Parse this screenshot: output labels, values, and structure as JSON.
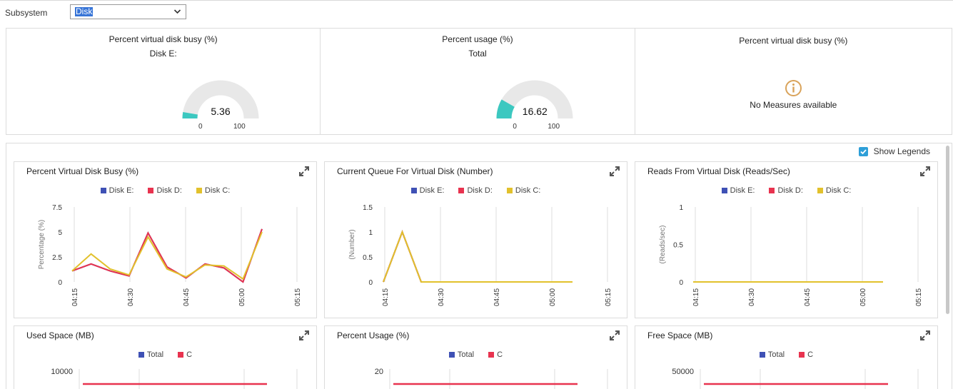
{
  "header": {
    "subsystem_label": "Subsystem",
    "subsystem_value": "Disk"
  },
  "gauges": [
    {
      "title": "Percent virtual disk busy (%)",
      "subtitle": "Disk E:",
      "value": 5.36,
      "value_label": "5.36",
      "min": "0",
      "max": "100"
    },
    {
      "title": "Percent usage (%)",
      "subtitle": "Total",
      "value": 16.62,
      "value_label": "16.62",
      "min": "0",
      "max": "100"
    },
    {
      "title": "Percent virtual disk busy (%)",
      "no_data_text": "No Measures available"
    }
  ],
  "colors": {
    "gauge_fill": "#3cc8c0",
    "gauge_track": "#e8e8e8",
    "series_blue": "#3f51b5",
    "series_red": "#e8334f",
    "series_yellow": "#e2c12c",
    "info_icon": "#d9a35a",
    "checkbox": "#2e9fd8"
  },
  "show_legends": {
    "label": "Show Legends",
    "checked": true
  },
  "chart_data": [
    {
      "type": "line",
      "title": "Percent Virtual Disk Busy (%)",
      "ylabel": "Percentage (%)",
      "ylim": [
        0,
        7.5
      ],
      "yticks": [
        "0",
        "2.5",
        "5",
        "7.5"
      ],
      "xticks": [
        "04:15",
        "04:30",
        "04:45",
        "05:00",
        "05:15"
      ],
      "legend": [
        "Disk E:",
        "Disk D:",
        "Disk C:"
      ],
      "x": [
        "04:14",
        "04:18",
        "04:23",
        "04:29",
        "04:34",
        "04:39",
        "04:44",
        "04:49",
        "04:54",
        "04:59",
        "05:04"
      ],
      "series": [
        {
          "name": "Disk E:",
          "color": "#3f51b5",
          "values": [
            1.1,
            1.8,
            1.1,
            0.6,
            4.9,
            1.5,
            0.4,
            1.8,
            1.4,
            0.0,
            5.3
          ]
        },
        {
          "name": "Disk D:",
          "color": "#e8334f",
          "values": [
            1.1,
            1.8,
            1.1,
            0.6,
            4.9,
            1.5,
            0.4,
            1.8,
            1.4,
            0.0,
            5.3
          ]
        },
        {
          "name": "Disk C:",
          "color": "#e2c12c",
          "values": [
            1.1,
            2.8,
            1.3,
            0.7,
            4.5,
            1.3,
            0.5,
            1.7,
            1.6,
            0.3,
            5.0
          ]
        }
      ]
    },
    {
      "type": "line",
      "title": "Current Queue For Virtual Disk (Number)",
      "ylabel": "(Number)",
      "ylim": [
        0,
        1.5
      ],
      "yticks": [
        "0",
        "0.5",
        "1",
        "1.5"
      ],
      "xticks": [
        "04:15",
        "04:30",
        "04:45",
        "05:00",
        "05:15"
      ],
      "legend": [
        "Disk E:",
        "Disk D:",
        "Disk C:"
      ],
      "x": [
        "04:15",
        "04:20",
        "04:25",
        "04:30",
        "04:35",
        "04:40",
        "04:45",
        "04:50",
        "04:55",
        "05:00",
        "05:05"
      ],
      "series": [
        {
          "name": "Disk E:",
          "color": "#3f51b5",
          "values": [
            0,
            1,
            0,
            0,
            0,
            0,
            0,
            0,
            0,
            0,
            0
          ]
        },
        {
          "name": "Disk D:",
          "color": "#e8334f",
          "values": [
            0,
            1,
            0,
            0,
            0,
            0,
            0,
            0,
            0,
            0,
            0
          ]
        },
        {
          "name": "Disk C:",
          "color": "#e2c12c",
          "values": [
            0,
            1,
            0,
            0,
            0,
            0,
            0,
            0,
            0,
            0,
            0
          ]
        }
      ]
    },
    {
      "type": "line",
      "title": "Reads From Virtual Disk (Reads/Sec)",
      "ylabel": "(Reads/sec)",
      "ylim": [
        0,
        1
      ],
      "yticks": [
        "0",
        "0.5",
        "1"
      ],
      "xticks": [
        "04:15",
        "04:30",
        "04:45",
        "05:00",
        "05:15"
      ],
      "legend": [
        "Disk E:",
        "Disk D:",
        "Disk C:"
      ],
      "x": [
        "04:14",
        "05:07"
      ],
      "series": [
        {
          "name": "Disk E:",
          "color": "#3f51b5",
          "values": [
            0,
            0
          ]
        },
        {
          "name": "Disk D:",
          "color": "#e8334f",
          "values": [
            0,
            0
          ]
        },
        {
          "name": "Disk C:",
          "color": "#e2c12c",
          "values": [
            0,
            0
          ]
        }
      ]
    },
    {
      "type": "line",
      "title": "Used Space (MB)",
      "yticks": [
        "10000"
      ],
      "legend": [
        "Total",
        "C"
      ],
      "series": [
        {
          "name": "Total",
          "color": "#3f51b5",
          "values": []
        },
        {
          "name": "C",
          "color": "#e8334f",
          "values": []
        }
      ]
    },
    {
      "type": "line",
      "title": "Percent Usage (%)",
      "yticks": [
        "20"
      ],
      "legend": [
        "Total",
        "C"
      ],
      "series": [
        {
          "name": "Total",
          "color": "#3f51b5",
          "values": []
        },
        {
          "name": "C",
          "color": "#e8334f",
          "values": []
        }
      ]
    },
    {
      "type": "line",
      "title": "Free Space (MB)",
      "yticks": [
        "50000"
      ],
      "legend": [
        "Total",
        "C"
      ],
      "series": [
        {
          "name": "Total",
          "color": "#3f51b5",
          "values": []
        },
        {
          "name": "C",
          "color": "#e8334f",
          "values": []
        }
      ]
    }
  ]
}
